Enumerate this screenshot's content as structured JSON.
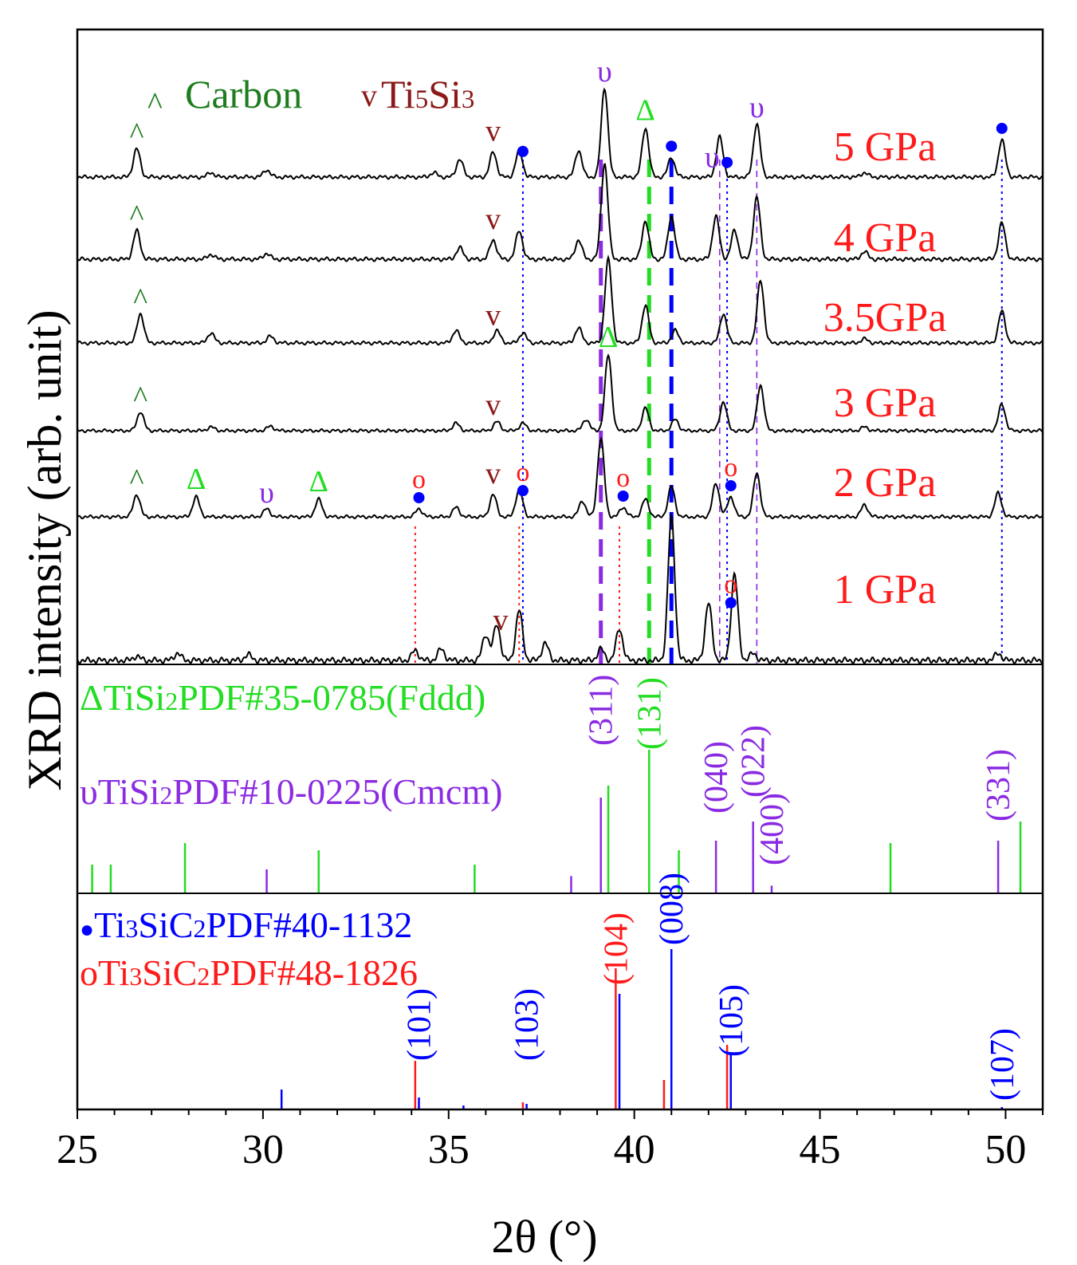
{
  "chart_data": {
    "type": "line",
    "title": "",
    "xlabel": "2θ (°)",
    "ylabel": "XRD intensity (arb. unit)",
    "xlim": [
      25,
      51
    ],
    "x_ticks": [
      25,
      30,
      35,
      40,
      45,
      50
    ],
    "x_tick_labels": [
      "25",
      "30",
      "35",
      "40",
      "45",
      "50"
    ],
    "legend_top": {
      "carbon": {
        "symbol": "^",
        "label": "Carbon",
        "color": "#1e7d1e"
      },
      "ti5si3": {
        "symbol": "v",
        "label": "Ti5Si3",
        "label_main": "Ti",
        "sub1": "5",
        "mid": "Si",
        "sub2": "3",
        "color": "#8b1a1a"
      }
    },
    "series": [
      {
        "name": "5 GPa",
        "peaks": [
          [
            26.6,
            0.32
          ],
          [
            28.6,
            0.05
          ],
          [
            30.1,
            0.08
          ],
          [
            34.6,
            0.05
          ],
          [
            35.3,
            0.2
          ],
          [
            36.2,
            0.28
          ],
          [
            36.9,
            0.3
          ],
          [
            38.5,
            0.3
          ],
          [
            39.2,
            1.0
          ],
          [
            40.3,
            0.55
          ],
          [
            41.0,
            0.22
          ],
          [
            42.3,
            0.45
          ],
          [
            43.3,
            0.6
          ],
          [
            46.2,
            0.05
          ],
          [
            49.9,
            0.42
          ]
        ]
      },
      {
        "name": "4 GPa",
        "peaks": [
          [
            26.6,
            0.3
          ],
          [
            28.6,
            0.05
          ],
          [
            30.1,
            0.06
          ],
          [
            35.3,
            0.12
          ],
          [
            36.2,
            0.2
          ],
          [
            36.9,
            0.3
          ],
          [
            38.5,
            0.2
          ],
          [
            39.2,
            1.0
          ],
          [
            40.3,
            0.4
          ],
          [
            41.0,
            0.45
          ],
          [
            42.2,
            0.45
          ],
          [
            42.7,
            0.3
          ],
          [
            43.3,
            0.65
          ],
          [
            46.2,
            0.08
          ],
          [
            49.9,
            0.38
          ]
        ]
      },
      {
        "name": "3.5GPa",
        "peaks": [
          [
            26.7,
            0.35
          ],
          [
            28.6,
            0.12
          ],
          [
            30.2,
            0.08
          ],
          [
            35.2,
            0.15
          ],
          [
            36.3,
            0.15
          ],
          [
            37.0,
            0.12
          ],
          [
            38.5,
            0.18
          ],
          [
            39.3,
            1.0
          ],
          [
            40.3,
            0.45
          ],
          [
            41.1,
            0.15
          ],
          [
            42.4,
            0.35
          ],
          [
            43.4,
            0.75
          ],
          [
            46.2,
            0.05
          ],
          [
            49.9,
            0.38
          ]
        ]
      },
      {
        "name": "3 GPa",
        "peaks": [
          [
            26.7,
            0.25
          ],
          [
            28.6,
            0.05
          ],
          [
            30.2,
            0.06
          ],
          [
            35.2,
            0.1
          ],
          [
            36.3,
            0.12
          ],
          [
            37.0,
            0.1
          ],
          [
            38.7,
            0.15
          ],
          [
            39.3,
            1.0
          ],
          [
            40.3,
            0.3
          ],
          [
            41.1,
            0.15
          ],
          [
            42.4,
            0.38
          ],
          [
            43.4,
            0.6
          ],
          [
            46.2,
            0.05
          ],
          [
            49.9,
            0.35
          ]
        ]
      },
      {
        "name": "2 GPa",
        "peaks": [
          [
            26.6,
            0.28
          ],
          [
            28.2,
            0.25
          ],
          [
            30.1,
            0.1
          ],
          [
            31.5,
            0.22
          ],
          [
            34.2,
            0.1
          ],
          [
            35.2,
            0.12
          ],
          [
            36.2,
            0.28
          ],
          [
            36.9,
            0.35
          ],
          [
            38.6,
            0.2
          ],
          [
            39.1,
            0.98
          ],
          [
            39.7,
            0.12
          ],
          [
            40.3,
            0.22
          ],
          [
            41.0,
            0.38
          ],
          [
            42.2,
            0.42
          ],
          [
            42.6,
            0.25
          ],
          [
            43.3,
            0.55
          ],
          [
            46.2,
            0.15
          ],
          [
            49.8,
            0.3
          ]
        ]
      },
      {
        "name": "1 GPa",
        "peaks": [
          [
            26.6,
            0.03
          ],
          [
            27.7,
            0.05
          ],
          [
            29.6,
            0.04
          ],
          [
            34.1,
            0.07
          ],
          [
            34.8,
            0.08
          ],
          [
            36.0,
            0.18
          ],
          [
            36.3,
            0.25
          ],
          [
            36.9,
            0.35
          ],
          [
            37.6,
            0.12
          ],
          [
            39.1,
            0.08
          ],
          [
            39.6,
            0.22
          ],
          [
            41.0,
            1.0
          ],
          [
            42.0,
            0.4
          ],
          [
            42.7,
            0.6
          ],
          [
            43.2,
            0.05
          ],
          [
            49.8,
            0.05
          ]
        ]
      }
    ],
    "series_colors": {
      "trace": "#000000",
      "label": "#ff1a1a"
    },
    "markers": {
      "carbon": [
        [
          0,
          26.6
        ],
        [
          1,
          26.6
        ],
        [
          2,
          26.7
        ],
        [
          3,
          26.7
        ],
        [
          4,
          26.6
        ]
      ],
      "ti5si3": [
        [
          0,
          36.2
        ],
        [
          1,
          36.2
        ],
        [
          2,
          36.2
        ],
        [
          3,
          36.2
        ],
        [
          4,
          36.2
        ],
        [
          5,
          36.4
        ]
      ],
      "fddd_triangle": [
        [
          0,
          40.3
        ],
        [
          3,
          39.3
        ],
        [
          4,
          28.2
        ],
        [
          4,
          31.5
        ]
      ],
      "cmcm_upsilon": [
        [
          0,
          39.2
        ],
        [
          0,
          42.1
        ],
        [
          0,
          43.3
        ],
        [
          4,
          30.1
        ]
      ],
      "ti3sic2_dot": [
        [
          0,
          37.0
        ],
        [
          0,
          41.0
        ],
        [
          0,
          42.5
        ],
        [
          0,
          49.9
        ],
        [
          4,
          34.2
        ],
        [
          4,
          37.0
        ],
        [
          4,
          39.7
        ],
        [
          4,
          42.6
        ],
        [
          5,
          42.6
        ]
      ],
      "ti3sic2_circle": [
        [
          4,
          34.2
        ],
        [
          4,
          37.0
        ],
        [
          4,
          39.7
        ],
        [
          4,
          42.6
        ],
        [
          5,
          42.6
        ]
      ]
    },
    "guide_lines": [
      {
        "x": 37.0,
        "color": "#0000ff",
        "style": "dotted"
      },
      {
        "x": 41.0,
        "color": "#0000ff",
        "style": "dash-bold"
      },
      {
        "x": 42.5,
        "color": "#0000ff",
        "style": "dotted"
      },
      {
        "x": 49.9,
        "color": "#0000ff",
        "style": "dotted"
      },
      {
        "x": 39.1,
        "color": "#8a2be2",
        "style": "dash-bold"
      },
      {
        "x": 42.3,
        "color": "#8a2be2",
        "style": "dashed"
      },
      {
        "x": 43.3,
        "color": "#8a2be2",
        "style": "dashed"
      },
      {
        "x": 40.4,
        "color": "#22dd22",
        "style": "dash-bold"
      },
      {
        "x": 34.1,
        "color": "#ff1a1a",
        "style": "dotted"
      },
      {
        "x": 36.9,
        "color": "#ff1a1a",
        "style": "dotted"
      },
      {
        "x": 39.6,
        "color": "#ff1a1a",
        "style": "dotted"
      }
    ],
    "reference_fddd": {
      "label": "TiSi2PDF#35-0785(Fddd)",
      "symbol": "Δ",
      "color": "#22dd22",
      "sticks": [
        [
          25.4,
          0.2
        ],
        [
          25.9,
          0.2
        ],
        [
          27.9,
          0.35
        ],
        [
          31.5,
          0.3
        ],
        [
          35.7,
          0.2
        ],
        [
          39.3,
          0.75
        ],
        [
          40.4,
          1.0
        ],
        [
          41.2,
          0.3
        ],
        [
          46.9,
          0.35
        ],
        [
          50.4,
          0.5
        ]
      ],
      "hkl": [
        {
          "x": 40.4,
          "label": "(131)"
        }
      ]
    },
    "reference_cmcm": {
      "label": "TiSi2PDF#10-0225(Cmcm)",
      "symbol": "υ",
      "color": "#8a2be2",
      "sticks": [
        [
          30.1,
          0.25
        ],
        [
          38.3,
          0.18
        ],
        [
          39.1,
          1.0
        ],
        [
          42.2,
          0.55
        ],
        [
          43.2,
          0.75
        ],
        [
          43.7,
          0.08
        ],
        [
          49.8,
          0.55
        ]
      ],
      "hkl": [
        {
          "x": 39.1,
          "label": "(311)"
        },
        {
          "x": 42.2,
          "label": "(040)"
        },
        {
          "x": 43.2,
          "label": "(022)"
        },
        {
          "x": 43.7,
          "label": "(400)"
        },
        {
          "x": 49.8,
          "label": "(331)"
        }
      ]
    },
    "reference_ti3sic2": {
      "blue": {
        "label": "Ti3SiC2PDF#40-1132",
        "symbol": "●",
        "color": "#0000ff",
        "sticks": [
          [
            30.5,
            0.12
          ],
          [
            34.2,
            0.07
          ],
          [
            35.4,
            0.02
          ],
          [
            37.1,
            0.03
          ],
          [
            39.6,
            0.72
          ],
          [
            41.0,
            1.0
          ],
          [
            42.6,
            0.35
          ],
          [
            49.9,
            0.01
          ]
        ]
      },
      "red": {
        "label": "Ti3SiC2PDF#48-1826",
        "symbol": "o",
        "color": "#ff1a1a",
        "sticks": [
          [
            34.1,
            0.3
          ],
          [
            37.0,
            0.04
          ],
          [
            39.5,
            0.88
          ],
          [
            40.8,
            0.18
          ],
          [
            42.5,
            0.4
          ]
        ]
      },
      "hkl": [
        {
          "x": 34.2,
          "label": "(101)",
          "color": "#0000ff"
        },
        {
          "x": 37.1,
          "label": "(103)",
          "color": "#0000ff"
        },
        {
          "x": 39.5,
          "label": "(104)",
          "color": "#ff1a1a"
        },
        {
          "x": 41.0,
          "label": "(008)",
          "color": "#0000ff"
        },
        {
          "x": 42.6,
          "label": "(105)",
          "color": "#0000ff"
        },
        {
          "x": 49.9,
          "label": "(107)",
          "color": "#0000ff"
        }
      ]
    }
  },
  "labels": {
    "fddd_main": "TiSi",
    "fddd_sub": "2",
    "fddd_rest": "PDF#35-0785(Fddd)",
    "cmcm_main": "TiSi",
    "cmcm_sub": "2",
    "cmcm_rest": "PDF#10-0225(Cmcm)",
    "blue_main": "Ti",
    "blue_sub1": "3",
    "blue_mid": "SiC",
    "blue_sub2": "2",
    "blue_rest": "PDF#40-1132",
    "red_main": "Ti",
    "red_sub1": "3",
    "red_mid": "SiC",
    "red_sub2": "2",
    "red_rest": "PDF#48-1826"
  }
}
